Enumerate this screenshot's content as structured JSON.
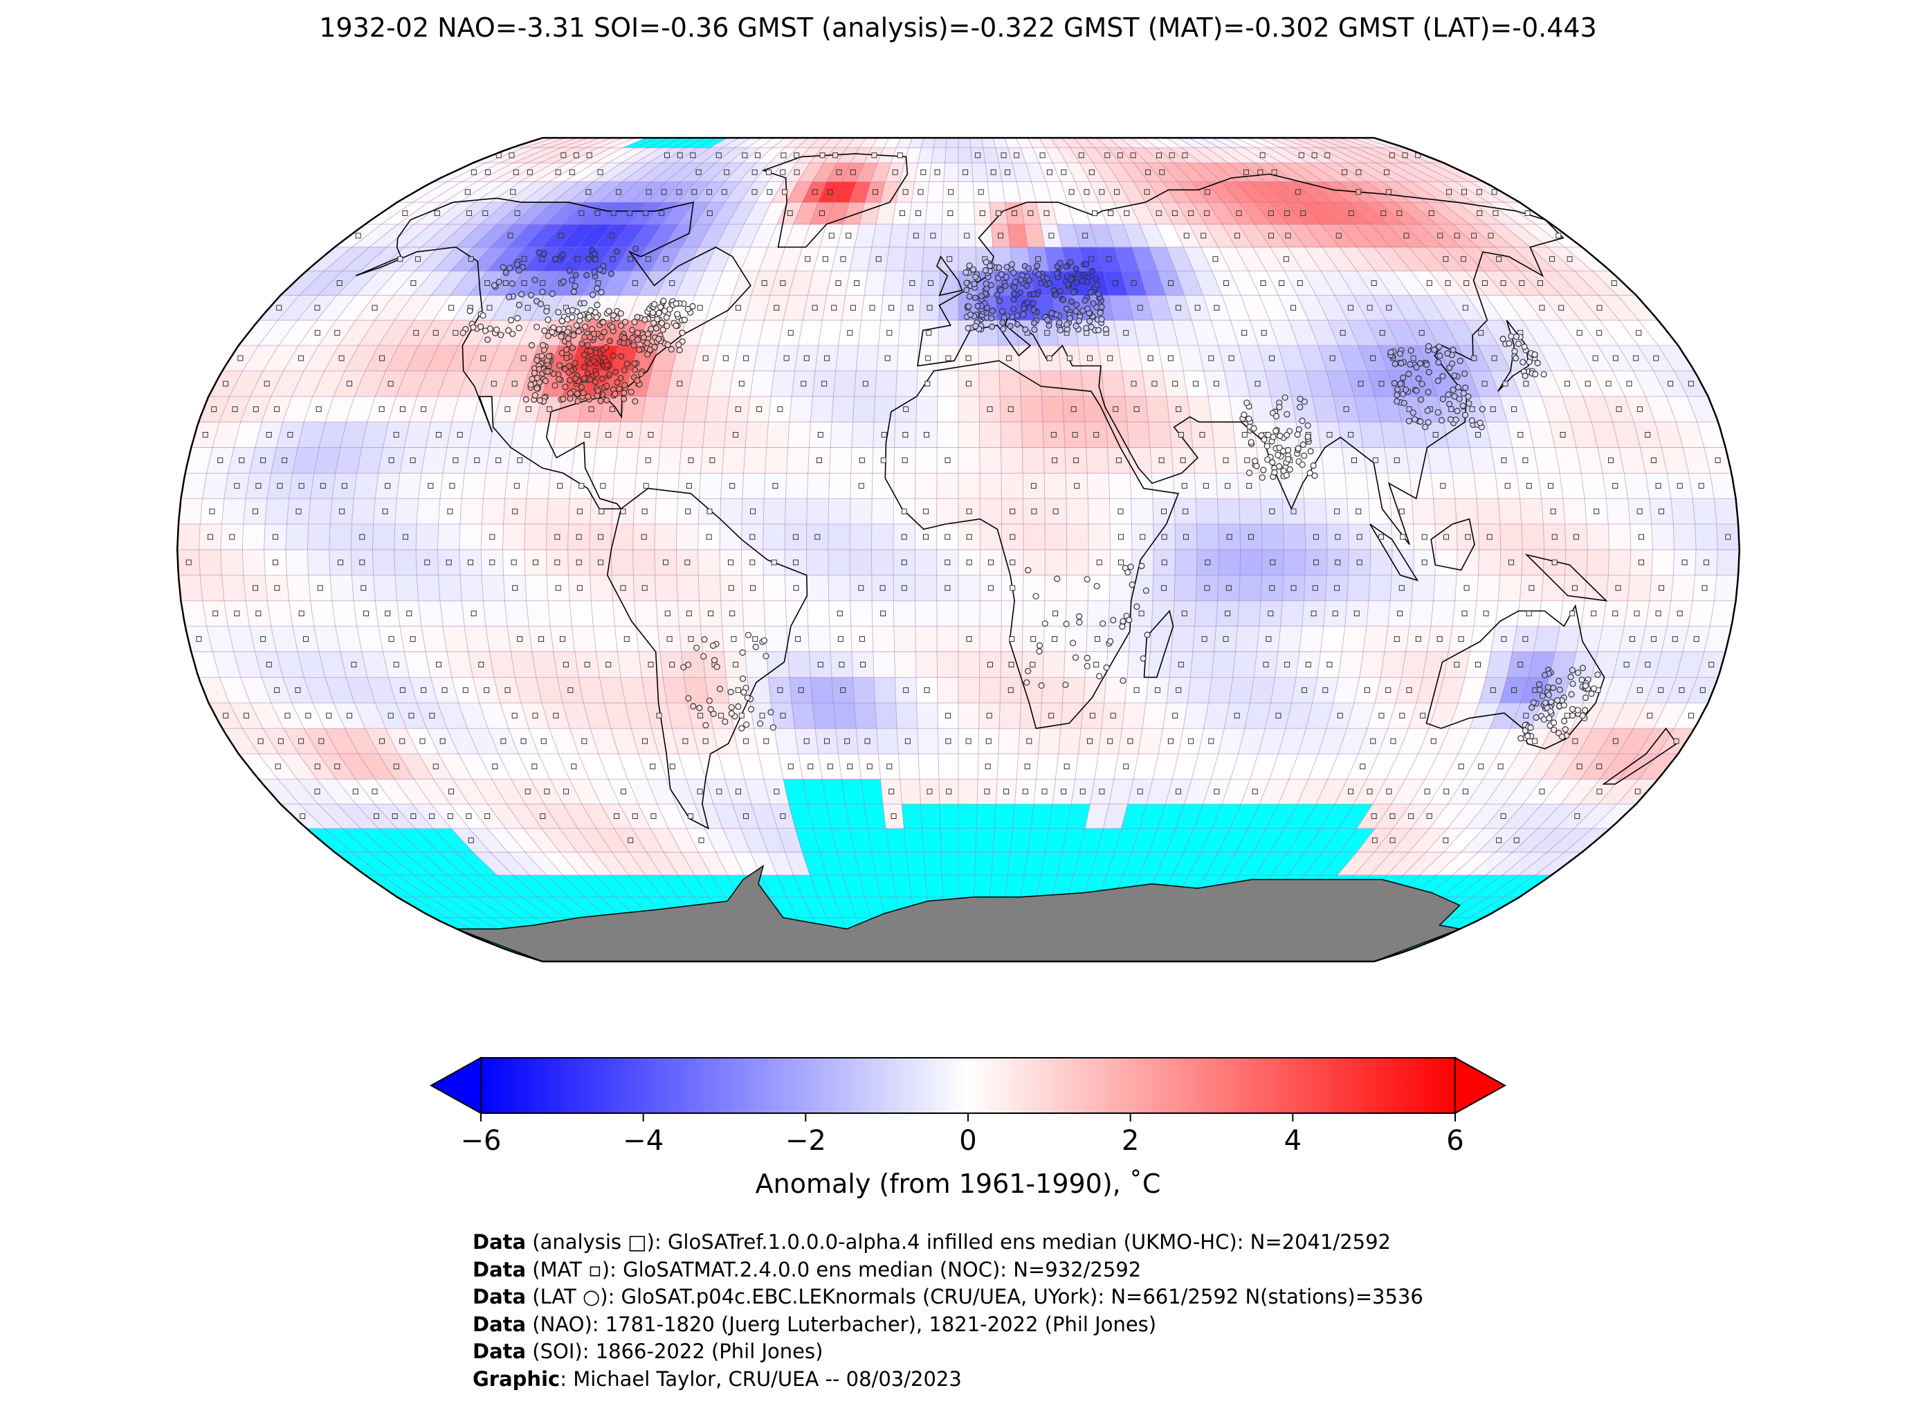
{
  "title": "1932-02 NAO=-3.31 SOI=-0.36 GMST (analysis)=-0.322 GMST (MAT)=-0.302 GMST (LAT)=-0.443",
  "colorbar": {
    "label": "Anomaly (from 1961-1990), ˚C",
    "ticks": [
      "−6",
      "−4",
      "−2",
      "0",
      "2",
      "4",
      "6"
    ],
    "range": [
      -6,
      6
    ],
    "colors": {
      "min": "#0000ff",
      "mid": "#ffffff",
      "max": "#ff0000"
    }
  },
  "map": {
    "projection": "Robinson",
    "colors": {
      "no_data": "#00ffff",
      "antarctica": "#808080",
      "grid": "#b36ab3",
      "coast": "#000000"
    }
  },
  "credits": [
    {
      "bold": "Data",
      "text": " (analysis □): GloSATref.1.0.0.0-alpha.4 infilled ens median (UKMO-HC): N=2041/2592"
    },
    {
      "bold": "Data",
      "text": " (MAT ▫): GloSATMAT.2.4.0.0 ens median (NOC): N=932/2592"
    },
    {
      "bold": "Data",
      "text": " (LAT ○): GloSAT.p04c.EBC.LEKnormals (CRU/UEA, UYork): N=661/2592 N(stations)=3536"
    },
    {
      "bold": "Data",
      "text": " (NAO): 1781-1820 (Juerg Luterbacher), 1821-2022 (Phil Jones)"
    },
    {
      "bold": "Data",
      "text": " (SOI): 1866-2022 (Phil Jones)"
    },
    {
      "bold": "Graphic",
      "text": ": Michael Taylor, CRU/UEA -- 08/03/2023"
    }
  ]
}
